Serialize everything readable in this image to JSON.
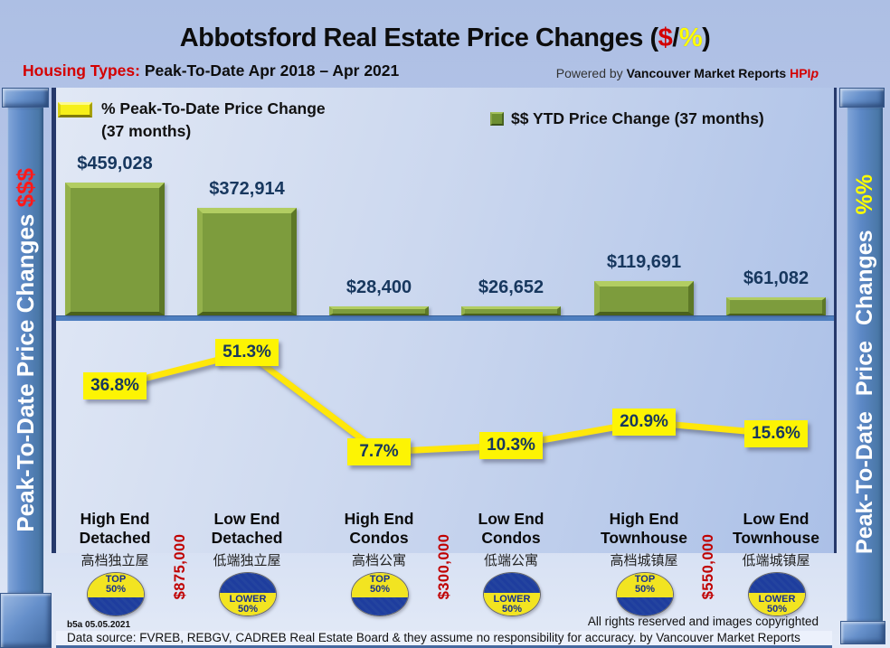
{
  "header": {
    "title_prefix": "Abbotsford Real Estate Price Changes (",
    "title_dollar": "$",
    "title_slash": "/",
    "title_percent": "%",
    "title_suffix": ")",
    "subtitle_label": "Housing Types:",
    "subtitle_text": " Peak-To-Date Apr 2018 – Apr 2021",
    "powered_prefix": "Powered by ",
    "powered_brand": "Vancouver Market Reports ",
    "powered_hpi": "HPI",
    "powered_hpi_italic": "p"
  },
  "legend": {
    "pct_label": "% Peak-To-Date Price Change (37 months)",
    "dollar_label": "$$ YTD Price Change (37 months)"
  },
  "axis": {
    "left_label": "Peak-To-Date Price Changes ",
    "left_suffix": "$$$",
    "right_label": "Peak-To-Date Price Changes ",
    "right_suffix": "%%"
  },
  "chart_data": [
    {
      "type": "bar",
      "name": "$$ YTD Price Change (37 months)",
      "categories": [
        "High End Detached",
        "Low End Detached",
        "High End Condos",
        "Low End Condos",
        "High End Townhouse",
        "Low End Townhouse"
      ],
      "values": [
        459028,
        372914,
        28400,
        26652,
        119691,
        61082
      ],
      "labels": [
        "$459,028",
        "$372,914",
        "$28,400",
        "$26,652",
        "$119,691",
        "$61,082"
      ],
      "color": "#7d9c3d",
      "ylabel": "Peak-To-Date Price Changes $$$"
    },
    {
      "type": "line",
      "name": "% Peak-To-Date Price Change (37 months)",
      "categories": [
        "High End Detached",
        "Low End Detached",
        "High End Condos",
        "Low End Condos",
        "High End Townhouse",
        "Low End Townhouse"
      ],
      "values": [
        36.8,
        51.3,
        7.7,
        10.3,
        20.9,
        15.6
      ],
      "labels": [
        "36.8%",
        "51.3%",
        "7.7%",
        "10.3%",
        "20.9%",
        "15.6%"
      ],
      "color": "#ffe70a",
      "ylabel": "Peak-To-Date Price Changes %%"
    }
  ],
  "categories": [
    {
      "line1": "High End",
      "line2": "Detached",
      "zh": "高档独立屋",
      "badge_line1": "TOP",
      "badge_line2": "50%",
      "badge_type": "top"
    },
    {
      "line1": "Low End",
      "line2": "Detached",
      "zh": "低端独立屋",
      "badge_line1": "LOWER",
      "badge_line2": "50%",
      "badge_type": "lower"
    },
    {
      "line1": "High End",
      "line2": "Condos",
      "zh": "高档公寓",
      "badge_line1": "TOP",
      "badge_line2": "50%",
      "badge_type": "top"
    },
    {
      "line1": "Low End",
      "line2": "Condos",
      "zh": "低端公寓",
      "badge_line1": "LOWER",
      "badge_line2": "50%",
      "badge_type": "lower"
    },
    {
      "line1": "High End",
      "line2": "Townhouse",
      "zh": "高档城镇屋",
      "badge_line1": "TOP",
      "badge_line2": "50%",
      "badge_type": "top"
    },
    {
      "line1": "Low End",
      "line2": "Townhouse",
      "zh": "低端城镇屋",
      "badge_line1": "LOWER",
      "badge_line2": "50%",
      "badge_type": "lower"
    }
  ],
  "divider_prices": [
    "$875,000",
    "$300,000",
    "$550,000"
  ],
  "footer": {
    "version": "b5a 05.05.2021",
    "rights": "All rights reserved and  images copyrighted",
    "datasource": "Data source: FVREB, REBGV, CADREB Real Estate Board & they assume no responsibility for accuracy. by Vancouver Market Reports"
  },
  "colors": {
    "bar_green": "#7d9c3d",
    "line_yellow": "#ffe70a",
    "label_navy": "#17375e",
    "price_red": "#c00000",
    "badge_navy": "#1e3d9e",
    "badge_yellow": "#f2e421"
  }
}
